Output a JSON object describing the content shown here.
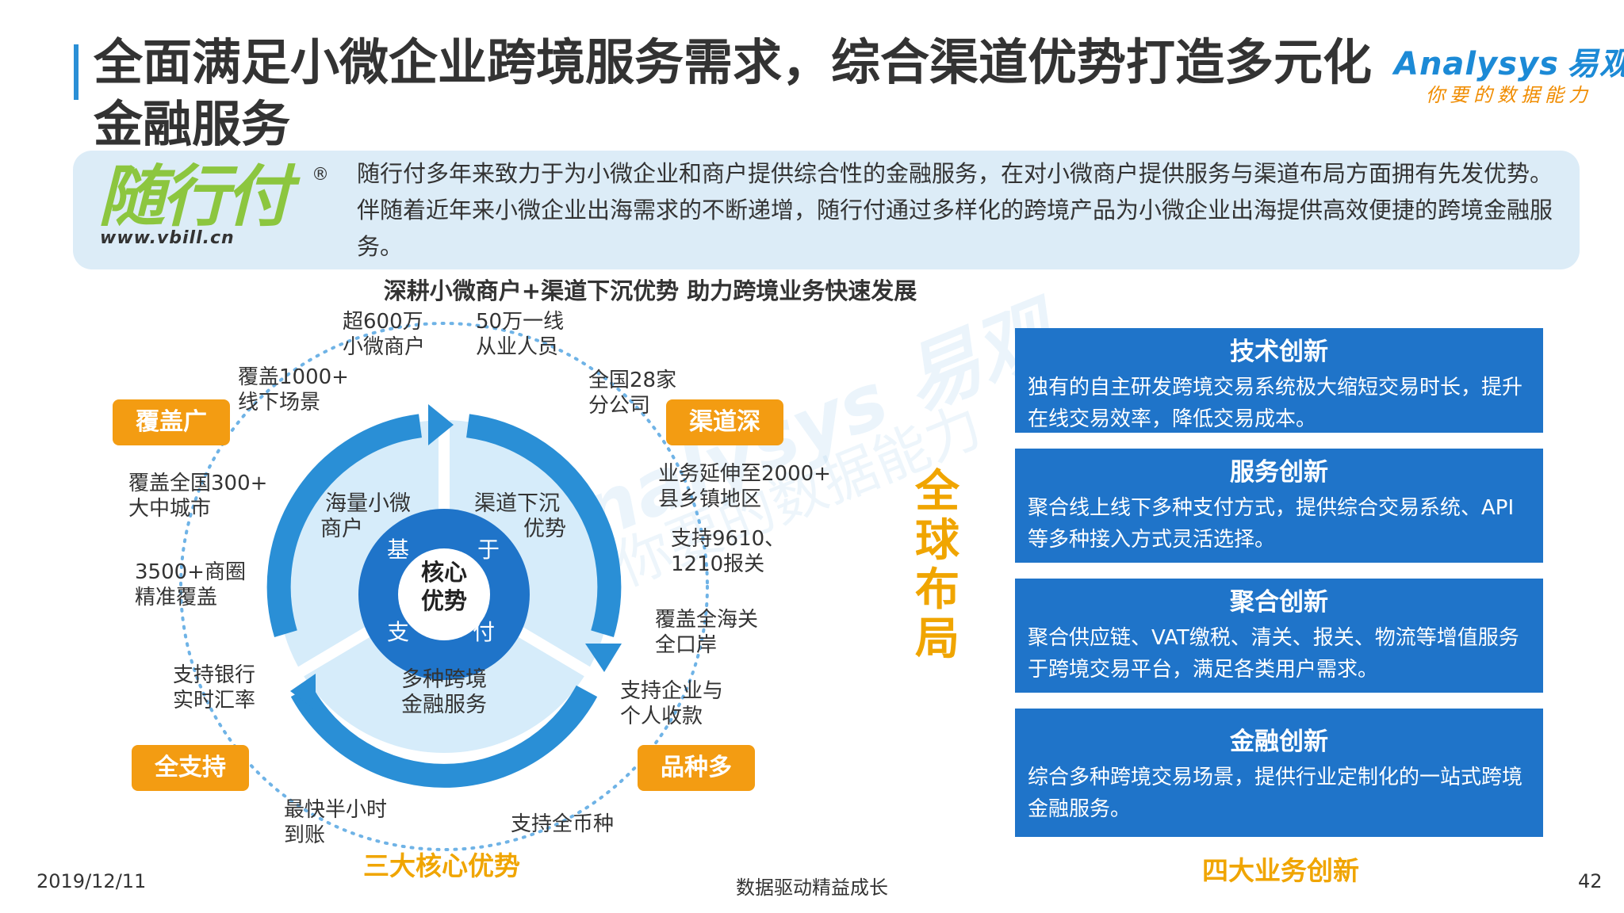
{
  "header": {
    "title": "全面满足小微企业跨境服务需求，综合渠道优势打造多元化金融服务",
    "logo_en": "Analysys",
    "logo_cn": "易观",
    "logo_tagline": "你要的数据能力"
  },
  "intro": {
    "brand_name": "随行付",
    "brand_reg": "®",
    "brand_url": "www.vbill.cn",
    "text": "随行付多年来致力于为小微企业和商户提供综合性的金融服务，在对小微商户提供服务与渠道布局方面拥有先发优势。伴随着近年来小微企业出海需求的不断递增，随行付通过多样化的跨境产品为小微企业出海提供高效便捷的跨境金融服务。"
  },
  "subtitle": "深耕小微商户+渠道下沉优势  助力跨境业务快速发展",
  "watermark": {
    "line1": "Analysys 易观",
    "line2": "你要的数据能力"
  },
  "diagram": {
    "center": [
      "核心",
      "优势"
    ],
    "ring_chars": [
      "基",
      "于",
      "支",
      "付"
    ],
    "segments": [
      {
        "line1": "海量小微",
        "line2": "商户"
      },
      {
        "line1": "渠道下沉",
        "line2": "优势"
      },
      {
        "line1": "多种跨境",
        "line2": "金融服务"
      }
    ],
    "tags": {
      "coverage": "覆盖广",
      "channel": "渠道深",
      "support": "全支持",
      "variety": "品种多"
    },
    "labels": [
      {
        "line1": "超600万",
        "line2": "小微商户"
      },
      {
        "line1": "50万一线",
        "line2": "从业人员"
      },
      {
        "line1": "全国28家",
        "line2": "分公司"
      },
      {
        "line1": "覆盖1000+",
        "line2": "线下场景"
      },
      {
        "line1": "业务延伸至2000+",
        "line2": "县乡镇地区"
      },
      {
        "line1": "覆盖全国300+",
        "line2": "大中城市"
      },
      {
        "line1": "支持9610、",
        "line2": "1210报关"
      },
      {
        "line1": "3500+商圈",
        "line2": "精准覆盖"
      },
      {
        "line1": "覆盖全海关",
        "line2": "全口岸"
      },
      {
        "line1": "支持银行",
        "line2": "实时汇率"
      },
      {
        "line1": "支持企业与",
        "line2": "个人收款"
      },
      {
        "line1": "最快半小时",
        "line2": "到账"
      },
      {
        "line1": "支持全币种",
        "line2": ""
      }
    ],
    "caption": "三大核心优势"
  },
  "global": [
    "全",
    "球",
    "布",
    "局"
  ],
  "innovations": [
    {
      "title": "技术创新",
      "body": "独有的自主研发跨境交易系统极大缩短交易时长，提升在线交易效率，降低交易成本。"
    },
    {
      "title": "服务创新",
      "body": "聚合线上线下多种支付方式，提供综合交易系统、API等多种接入方式灵活选择。"
    },
    {
      "title": "聚合创新",
      "body": "聚合供应链、VAT缴税、清关、报关、物流等增值服务于跨境交易平台，满足各类用户需求。"
    },
    {
      "title": "金融创新",
      "body": "综合多种跨境交易场景，提供行业定制化的一站式跨境金融服务。"
    }
  ],
  "innovations_caption": "四大业务创新",
  "footer": {
    "date": "2019/12/11",
    "slogan": "数据驱动精益成长",
    "page": "42"
  },
  "colors": {
    "accent_blue": "#1f74c9",
    "ring_blue": "#2a8fd6",
    "orange": "#f39c12",
    "yellow_text": "#f0a500",
    "brand_green": "#8cc63f"
  }
}
